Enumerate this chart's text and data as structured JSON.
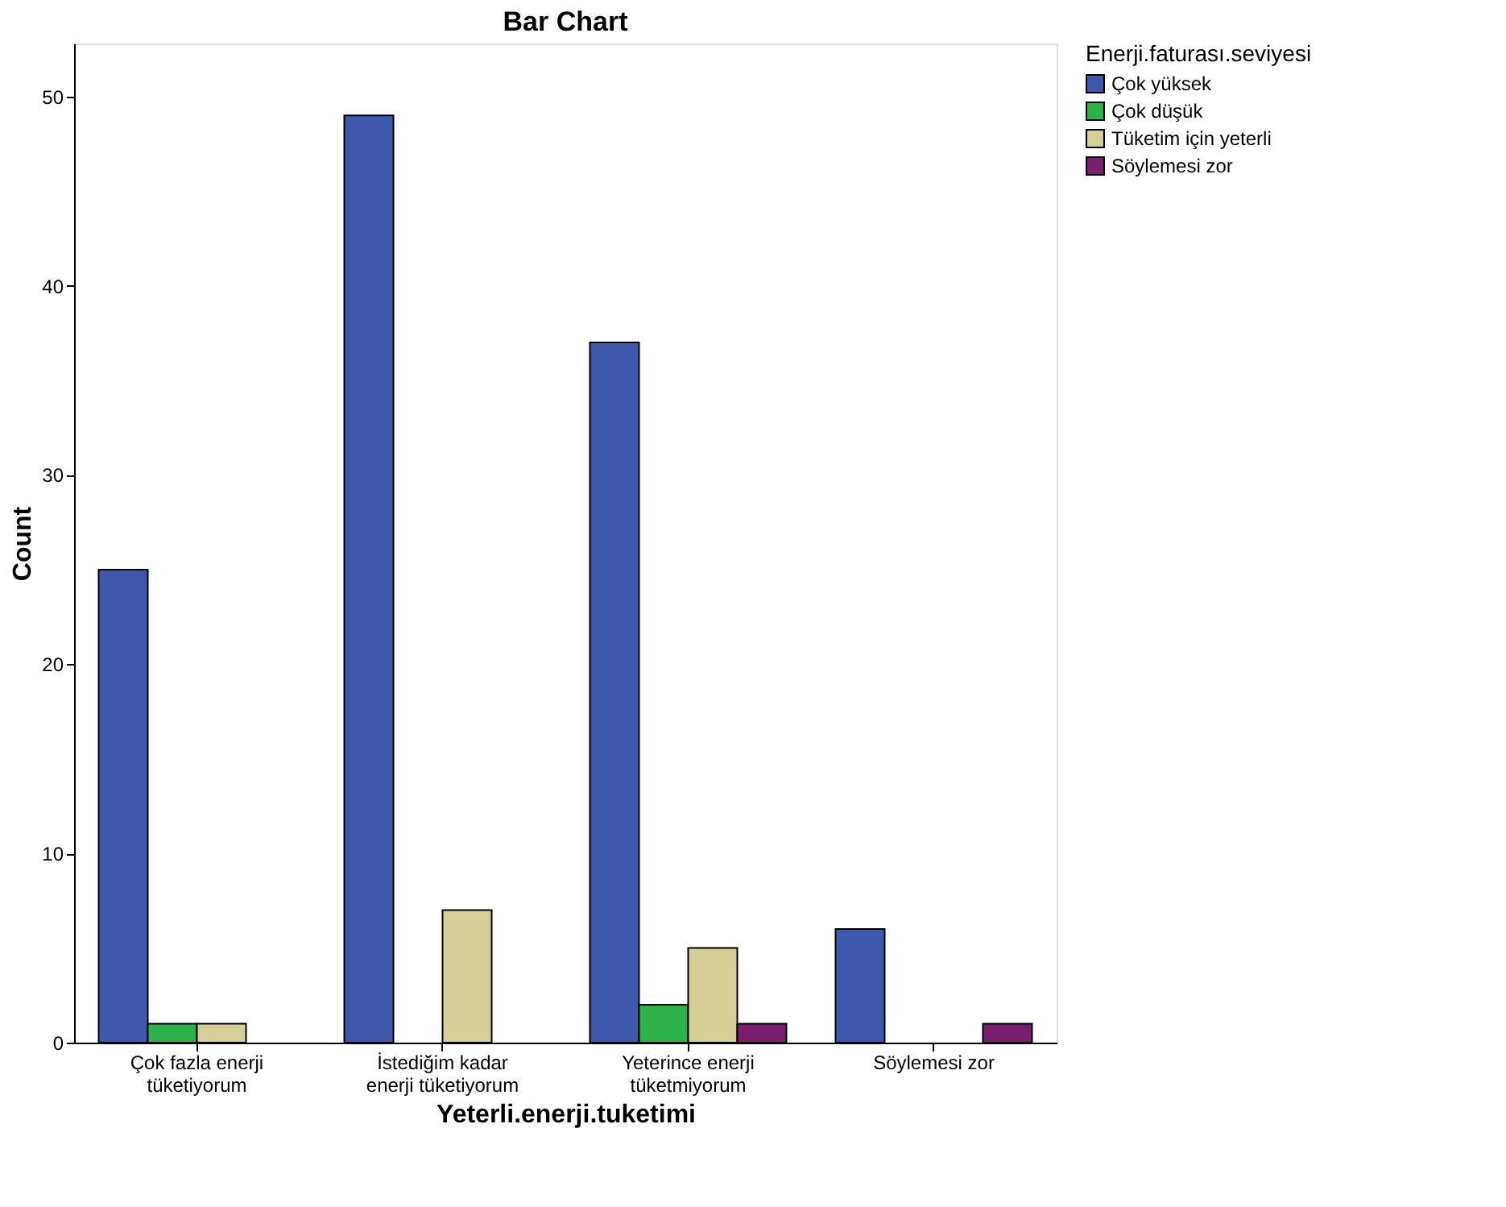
{
  "chart_data": {
    "type": "bar",
    "title": "Bar Chart",
    "xlabel": "Yeterli.enerji.tuketimi",
    "ylabel": "Count",
    "legend_title": "Enerji.faturası.seviyesi",
    "categories": [
      "Çok fazla enerji tüketiyorum",
      "İstediğim kadar enerji tüketiyorum",
      "Yeterince enerji tüketmiyorum",
      "Söylemesi zor"
    ],
    "series": [
      {
        "name": "Çok yüksek",
        "color": "#3e58ac",
        "values": [
          25,
          49,
          37,
          6
        ]
      },
      {
        "name": "Çok düşük",
        "color": "#2eb24a",
        "values": [
          1,
          null,
          2,
          null
        ]
      },
      {
        "name": "Tüketim için yeterli",
        "color": "#d5cf97",
        "values": [
          1,
          7,
          5,
          null
        ]
      },
      {
        "name": "Söylemesi zor",
        "color": "#7a1e6f",
        "values": [
          null,
          null,
          1,
          1
        ]
      }
    ],
    "ylim": [
      0,
      52.8
    ],
    "yticks": [
      0,
      10,
      20,
      30,
      40,
      50
    ],
    "grid": false,
    "legend": "top right"
  }
}
